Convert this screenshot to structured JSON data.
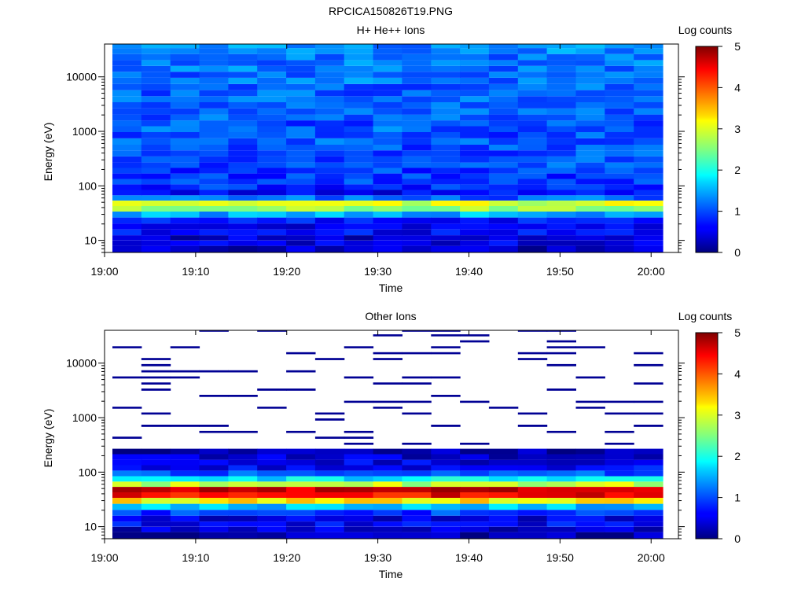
{
  "figure_title": "RPCICA150826T19.PNG",
  "chart_data": [
    {
      "type": "heatmap",
      "title": "H+ He++ Ions",
      "xlabel": "Time",
      "ylabel": "Energy (eV)",
      "x_ticks": [
        "19:00",
        "19:10",
        "19:20",
        "19:30",
        "19:40",
        "19:50",
        "20:00"
      ],
      "x_range": [
        "19:00",
        "20:03"
      ],
      "y_scale": "log",
      "y_ticks": [
        "10",
        "100",
        "1000",
        "10000"
      ],
      "y_range": [
        6,
        40000
      ],
      "colorbar": {
        "label": "Log counts",
        "ticks": [
          "0",
          "1",
          "2",
          "3",
          "4",
          "5"
        ],
        "range": [
          0,
          5
        ]
      },
      "profile": {
        "description_bins_log_counts": "per energy bin, typical log counts",
        "energy_eV": [
          7,
          9,
          11,
          14,
          18,
          23,
          30,
          38,
          48,
          60,
          75,
          95,
          120,
          150,
          190,
          240,
          300,
          400,
          500,
          650,
          850,
          1100,
          1400,
          1800,
          2300,
          3000,
          3900,
          5000,
          6500,
          8400,
          11000,
          14000,
          18000,
          23000,
          30000,
          38000
        ],
        "log_counts": [
          0.3,
          0.5,
          0.4,
          0.6,
          0.5,
          0.7,
          1.5,
          2.6,
          2.9,
          1.1,
          0.6,
          0.8,
          0.9,
          0.9,
          0.9,
          1.0,
          1.0,
          1.0,
          1.0,
          1.1,
          1.0,
          1.1,
          1.0,
          1.1,
          1.1,
          1.1,
          1.1,
          1.1,
          1.1,
          1.2,
          1.1,
          1.2,
          1.2,
          1.2,
          1.3,
          1.3
        ]
      }
    },
    {
      "type": "heatmap",
      "title": "Other Ions",
      "xlabel": "Time",
      "ylabel": "Energy (eV)",
      "x_ticks": [
        "19:00",
        "19:10",
        "19:20",
        "19:30",
        "19:40",
        "19:50",
        "20:00"
      ],
      "x_range": [
        "19:00",
        "20:03"
      ],
      "y_scale": "log",
      "y_ticks": [
        "10",
        "100",
        "1000",
        "10000"
      ],
      "y_range": [
        6,
        40000
      ],
      "colorbar": {
        "label": "Log counts",
        "ticks": [
          "0",
          "1",
          "2",
          "3",
          "4",
          "5"
        ],
        "range": [
          0,
          5
        ]
      },
      "profile": {
        "energy_eV": [
          7,
          9,
          11,
          14,
          18,
          23,
          30,
          38,
          48,
          60,
          75,
          95,
          120,
          150,
          190,
          240,
          300,
          400,
          500,
          650,
          850,
          1100,
          1400,
          1800,
          2300,
          3000,
          3900,
          5000,
          6500,
          8400,
          11000,
          14000,
          18000,
          23000,
          30000,
          38000
        ],
        "log_counts": [
          0.2,
          0.4,
          0.6,
          0.5,
          0.9,
          1.6,
          3.2,
          4.4,
          4.6,
          2.8,
          1.8,
          1.0,
          0.6,
          0.5,
          0.4,
          0.2,
          0.1,
          0.1,
          0.1,
          0.1,
          0.1,
          0.1,
          0.1,
          0.1,
          0.1,
          0.1,
          0.1,
          0.1,
          0.1,
          0.1,
          0.1,
          0.1,
          0.1,
          0.1,
          0.1,
          0.1
        ],
        "sparse_above_eV": 250
      }
    }
  ]
}
